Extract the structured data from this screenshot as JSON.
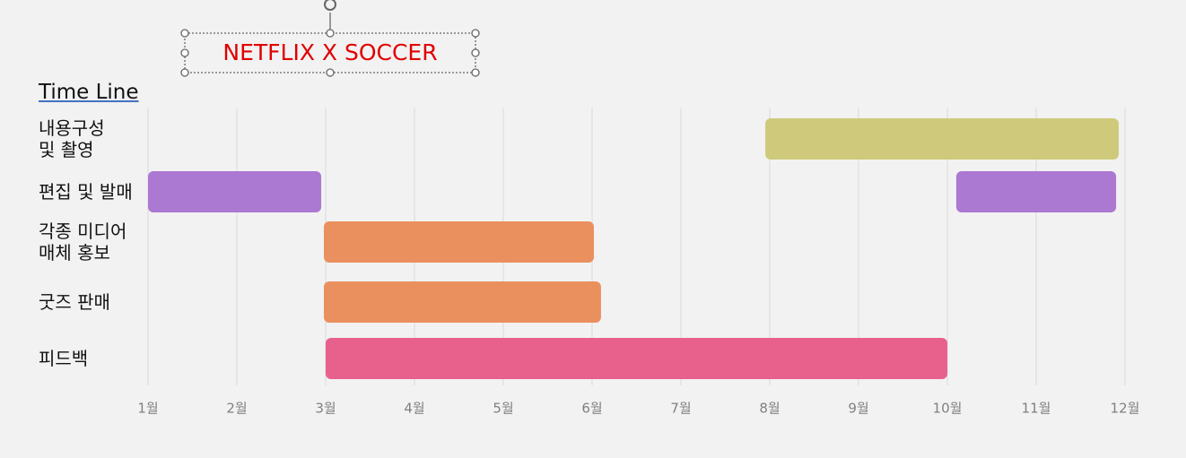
{
  "chart_data": {
    "type": "gantt",
    "title": "NETFLIX X SOCCER",
    "subtitle": "Time Line",
    "xlim": [
      1,
      12
    ],
    "xticks": [
      {
        "value": 1,
        "label": "1월"
      },
      {
        "value": 2,
        "label": "2월"
      },
      {
        "value": 3,
        "label": "3월"
      },
      {
        "value": 4,
        "label": "4월"
      },
      {
        "value": 5,
        "label": "5월"
      },
      {
        "value": 6,
        "label": "6월"
      },
      {
        "value": 7,
        "label": "7월"
      },
      {
        "value": 8,
        "label": "8월"
      },
      {
        "value": 9,
        "label": "9월"
      },
      {
        "value": 10,
        "label": "10월"
      },
      {
        "value": 11,
        "label": "11월"
      },
      {
        "value": 12,
        "label": "12월"
      }
    ],
    "grid": true,
    "tasks": [
      {
        "name": "내용구성\n및 촬영",
        "color": "#cfca7b",
        "segments": [
          [
            7.95,
            11.93
          ]
        ]
      },
      {
        "name": "편집 및 발매",
        "color": "#ab78d2",
        "segments": [
          [
            1,
            2.95
          ],
          [
            10.1,
            11.9
          ]
        ]
      },
      {
        "name": "각종 미디어\n매체 홍보",
        "color": "#ea8f5e",
        "segments": [
          [
            2.98,
            6.02
          ]
        ]
      },
      {
        "name": "굿즈 판매",
        "color": "#ea8f5e",
        "segments": [
          [
            2.98,
            6.1
          ]
        ]
      },
      {
        "name": "피드백",
        "color": "#e8608c",
        "segments": [
          [
            3,
            10
          ]
        ]
      }
    ]
  }
}
